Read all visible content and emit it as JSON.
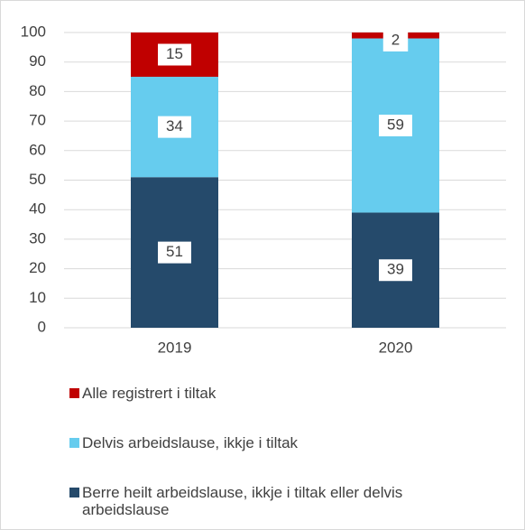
{
  "chart_data": {
    "type": "stacked_bar",
    "categories": [
      "2019",
      "2020"
    ],
    "series": [
      {
        "name": "Berre heilt arbeidslause, ikkje i tiltak eller delvis arbeidslause",
        "color": "#254a6b",
        "values": [
          51,
          39
        ]
      },
      {
        "name": "Delvis arbeidslause, ikkje i tiltak",
        "color": "#66ccee",
        "values": [
          34,
          59
        ]
      },
      {
        "name": "Alle registrert i tiltak",
        "color": "#c00000",
        "values": [
          15,
          2
        ]
      }
    ],
    "ylim": [
      0,
      100
    ],
    "yticks": [
      0,
      10,
      20,
      30,
      40,
      50,
      60,
      70,
      80,
      90,
      100
    ],
    "grid": true,
    "legend": "bottom"
  }
}
